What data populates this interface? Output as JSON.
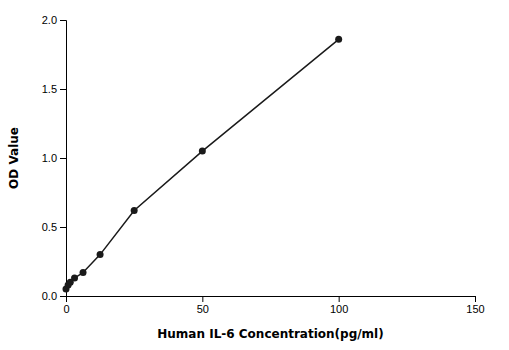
{
  "chart_data": {
    "type": "line",
    "x": [
      0,
      0.78,
      1.56,
      3.13,
      6.25,
      12.5,
      25,
      50,
      100
    ],
    "values": [
      0.05,
      0.08,
      0.1,
      0.13,
      0.17,
      0.3,
      0.62,
      1.05,
      1.86
    ],
    "xlabel": "Human IL-6 Concentration(pg/ml)",
    "ylabel": "OD Value",
    "xlim": [
      0,
      150
    ],
    "ylim": [
      0.0,
      2.0
    ],
    "xticks": [
      0,
      50,
      100,
      150
    ],
    "yticks": [
      {
        "value": 0,
        "label": "0.0"
      },
      0.5,
      {
        "value": 1,
        "label": "1.0"
      },
      1.5,
      {
        "value": 2,
        "label": "2.0"
      }
    ],
    "color": "#1a1a1a",
    "marker": "circle",
    "grid": false
  }
}
